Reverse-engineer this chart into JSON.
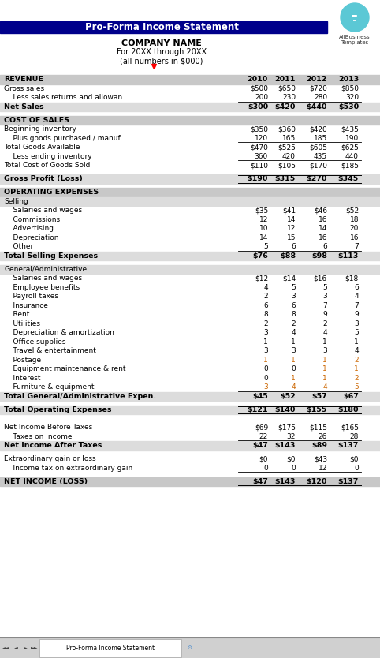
{
  "title": "Pro-Forma Income Statement",
  "company": "COMPANY NAME",
  "subtitle1": "For 20XX through 20XX",
  "subtitle2": "(all numbers in $000)",
  "header_bg": "#00008B",
  "header_fg": "#FFFFFF",
  "rows": [
    {
      "label": "REVENUE",
      "type": "section_header",
      "values": [
        "2010",
        "2011",
        "2012",
        "2013"
      ]
    },
    {
      "label": "Gross sales",
      "type": "data",
      "values": [
        "$500",
        "$650",
        "$720",
        "$850"
      ]
    },
    {
      "label": "    Less sales returns and allowan.",
      "type": "data",
      "values": [
        "200",
        "230",
        "280",
        "320"
      ],
      "underline": true
    },
    {
      "label": "Net Sales",
      "type": "subtotal",
      "values": [
        "$300",
        "$420",
        "$440",
        "$530"
      ]
    },
    {
      "label": "",
      "type": "spacer"
    },
    {
      "label": "COST OF SALES",
      "type": "section_header",
      "values": [
        "",
        "",
        "",
        ""
      ]
    },
    {
      "label": "Beginning inventory",
      "type": "data",
      "values": [
        "$350",
        "$360",
        "$420",
        "$435"
      ]
    },
    {
      "label": "    Plus goods purchased / manuf.",
      "type": "data",
      "values": [
        "120",
        "165",
        "185",
        "190"
      ],
      "underline": true
    },
    {
      "label": "Total Goods Available",
      "type": "data",
      "values": [
        "$470",
        "$525",
        "$605",
        "$625"
      ]
    },
    {
      "label": "    Less ending inventory",
      "type": "data",
      "values": [
        "360",
        "420",
        "435",
        "440"
      ],
      "underline": true
    },
    {
      "label": "Total Cost of Goods Sold",
      "type": "data",
      "values": [
        "$110",
        "$105",
        "$170",
        "$185"
      ]
    },
    {
      "label": "",
      "type": "spacer"
    },
    {
      "label": "Gross Profit (Loss)",
      "type": "gross_profit",
      "values": [
        "$190",
        "$315",
        "$270",
        "$345"
      ]
    },
    {
      "label": "",
      "type": "spacer"
    },
    {
      "label": "OPERATING EXPENSES",
      "type": "section_header",
      "values": [
        "",
        "",
        "",
        ""
      ]
    },
    {
      "label": "Selling",
      "type": "subsection",
      "values": [
        "",
        "",
        "",
        ""
      ]
    },
    {
      "label": "    Salaries and wages",
      "type": "data",
      "values": [
        "$35",
        "$41",
        "$46",
        "$52"
      ]
    },
    {
      "label": "    Commissions",
      "type": "data",
      "values": [
        "12",
        "14",
        "16",
        "18"
      ]
    },
    {
      "label": "    Advertising",
      "type": "data",
      "values": [
        "10",
        "12",
        "14",
        "20"
      ]
    },
    {
      "label": "    Depreciation",
      "type": "data",
      "values": [
        "14",
        "15",
        "16",
        "16"
      ]
    },
    {
      "label": "    Other",
      "type": "data",
      "values": [
        "5",
        "6",
        "6",
        "7"
      ],
      "underline": true
    },
    {
      "label": "Total Selling Expenses",
      "type": "subtotal",
      "values": [
        "$76",
        "$88",
        "$98",
        "$113"
      ]
    },
    {
      "label": "",
      "type": "spacer"
    },
    {
      "label": "General/Administrative",
      "type": "subsection",
      "values": [
        "",
        "",
        "",
        ""
      ]
    },
    {
      "label": "    Salaries and wages",
      "type": "data",
      "values": [
        "$12",
        "$14",
        "$16",
        "$18"
      ]
    },
    {
      "label": "    Employee benefits",
      "type": "data",
      "values": [
        "4",
        "5",
        "5",
        "6"
      ]
    },
    {
      "label": "    Payroll taxes",
      "type": "data",
      "values": [
        "2",
        "3",
        "3",
        "4"
      ]
    },
    {
      "label": "    Insurance",
      "type": "data",
      "values": [
        "6",
        "6",
        "7",
        "7"
      ]
    },
    {
      "label": "    Rent",
      "type": "data",
      "values": [
        "8",
        "8",
        "9",
        "9"
      ]
    },
    {
      "label": "    Utilities",
      "type": "data",
      "values": [
        "2",
        "2",
        "2",
        "3"
      ]
    },
    {
      "label": "    Depreciation & amortization",
      "type": "data",
      "values": [
        "3",
        "4",
        "4",
        "5"
      ]
    },
    {
      "label": "    Office supplies",
      "type": "data",
      "values": [
        "1",
        "1",
        "1",
        "1"
      ]
    },
    {
      "label": "    Travel & entertainment",
      "type": "data",
      "values": [
        "3",
        "3",
        "3",
        "4"
      ]
    },
    {
      "label": "    Postage",
      "type": "data_orange",
      "values": [
        "1",
        "1",
        "1",
        "2"
      ]
    },
    {
      "label": "    Equipment maintenance & rent",
      "type": "data_orange",
      "values": [
        "0",
        "0",
        "1",
        "1"
      ]
    },
    {
      "label": "    Interest",
      "type": "data_orange",
      "values": [
        "0",
        "1",
        "1",
        "2"
      ]
    },
    {
      "label": "    Furniture & equipment",
      "type": "data_orange",
      "values": [
        "3",
        "4",
        "4",
        "5"
      ],
      "underline": true
    },
    {
      "label": "Total General/Administrative Expen.",
      "type": "subtotal",
      "values": [
        "$45",
        "$52",
        "$57",
        "$67"
      ]
    },
    {
      "label": "",
      "type": "spacer"
    },
    {
      "label": "Total Operating Expenses",
      "type": "gross_profit",
      "values": [
        "$121",
        "$140",
        "$155",
        "$180"
      ]
    },
    {
      "label": "",
      "type": "spacer"
    },
    {
      "label": "",
      "type": "spacer"
    },
    {
      "label": "Net Income Before Taxes",
      "type": "data",
      "values": [
        "$69",
        "$175",
        "$115",
        "$165"
      ]
    },
    {
      "label": "    Taxes on income",
      "type": "data",
      "values": [
        "22",
        "32",
        "26",
        "28"
      ],
      "underline": true
    },
    {
      "label": "Net Income After Taxes",
      "type": "subtotal",
      "values": [
        "$47",
        "$143",
        "$89",
        "$137"
      ]
    },
    {
      "label": "",
      "type": "spacer"
    },
    {
      "label": "Extraordinary gain or loss",
      "type": "data",
      "values": [
        "$0",
        "$0",
        "$43",
        "$0"
      ]
    },
    {
      "label": "    Income tax on extraordinary gain",
      "type": "data",
      "values": [
        "0",
        "0",
        "12",
        "0"
      ],
      "underline": true
    },
    {
      "label": "",
      "type": "spacer"
    },
    {
      "label": "NET INCOME (LOSS)",
      "type": "net_income",
      "values": [
        "$47",
        "$143",
        "$120",
        "$137"
      ]
    }
  ],
  "section_bg": "#C8C8C8",
  "subsection_bg": "#DCDCDC",
  "subtotal_bg": "#DCDCDC",
  "gross_profit_bg": "#DCDCDC",
  "orange_vals": [
    "1",
    "2",
    "3",
    "4",
    "5"
  ],
  "orange_color": "#CC6600",
  "font_size": 6.5,
  "bold_font_size": 6.8
}
